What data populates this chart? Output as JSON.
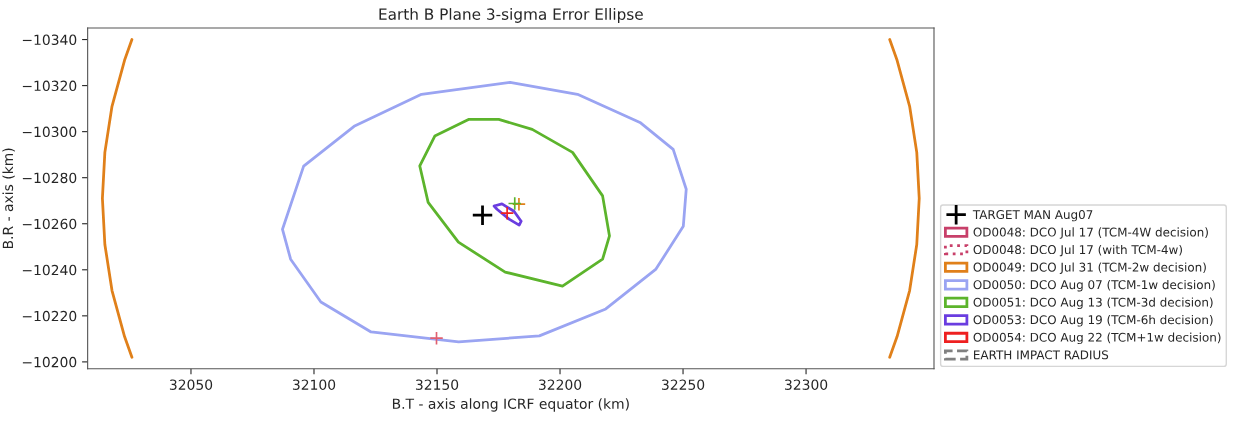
{
  "chart_data": {
    "type": "line",
    "title": "Earth B Plane 3-sigma Error Ellipse",
    "xlabel": "B.T - axis along ICRF equator (km)",
    "ylabel": "B.R - axis (km)",
    "xlim": [
      32008,
      32352
    ],
    "xticks": [
      32050,
      32100,
      32150,
      32200,
      32250,
      32300
    ],
    "ylim": [
      -10197,
      -10345
    ],
    "yticks": [
      -10340,
      -10320,
      -10300,
      -10280,
      -10260,
      -10240,
      -10220,
      -10200
    ],
    "grid": false,
    "legend": "right",
    "series": [
      {
        "type": "scatter",
        "name": "TARGET MAN Aug07",
        "color": "#000000",
        "marker": "cross",
        "x": [
          32168.5
        ],
        "values": [
          -10263.7
        ]
      },
      {
        "type": "line",
        "name": "OD0048: DCO Jul 17 (TCM-4W decision)",
        "color": "#c8406a",
        "line_style": "solid"
      },
      {
        "type": "line",
        "name": "OD0048: DCO Jul 17 (with TCM-4w)",
        "color": "#c8406a",
        "line_style": "dotted"
      },
      {
        "type": "line",
        "name": "OD0049: DCO Jul 31 (TCM-2w decision)",
        "color": "#e0801a",
        "line_style": "solid",
        "x": [
          32026.0,
          32023.0,
          32017.9,
          32015.0,
          32014,
          32015.0,
          32017.9,
          32023.0,
          32026.0,
          null,
          32334.0,
          32337.0,
          32342.1,
          32345.0,
          32346,
          32345.0,
          32342.1,
          32337.0,
          32334.0
        ],
        "values": [
          -10340,
          -10331,
          -10311,
          -10291,
          -10271,
          -10251,
          -10231,
          -10211,
          -10202,
          null,
          -10340,
          -10331,
          -10311,
          -10291,
          -10271,
          -10251,
          -10231,
          -10211,
          -10202
        ]
      },
      {
        "type": "line",
        "name": "OD0050: DCO Aug 07 (TCM-1w decision)",
        "color": "#9aa4f2",
        "line_style": "solid",
        "x": [
          32087.2,
          32095.8,
          32116.3,
          32143.7,
          32179.7,
          32207.1,
          32232.5,
          32246.0,
          32251.3,
          null,
          32087.2,
          32090.5,
          32102.8,
          32123.2,
          32158.8,
          32191.6,
          32218.6,
          32239.0,
          32250.1,
          32251.3
        ],
        "values": [
          -10257.6,
          -10285.0,
          -10302.3,
          -10316.2,
          -10321.4,
          -10316.2,
          -10304.0,
          -10292.3,
          -10275.0,
          null,
          -10257.6,
          -10244.6,
          -10226.0,
          -10213.0,
          -10208.7,
          -10211.3,
          -10223.0,
          -10240.3,
          -10258.9,
          -10275.0
        ]
      },
      {
        "type": "line",
        "name": "OD0051: DCO Aug 13 (TCM-3d decision)",
        "color": "#5cb42c",
        "line_style": "solid",
        "x": [
          32143.0,
          32149.1,
          32162.8,
          32175.1,
          32188.7,
          32205.1,
          32217.3,
          32220.1,
          null,
          32143.0,
          32146.4,
          32158.7,
          32177.7,
          32201.0,
          32217.3,
          32220.1
        ],
        "values": [
          -10285.1,
          -10298.1,
          -10305.3,
          -10305.3,
          -10301.0,
          -10291.0,
          -10272.1,
          -10254.7,
          null,
          -10285.1,
          -10269.3,
          -10252.0,
          -10239.0,
          -10232.9,
          -10244.6,
          -10254.7
        ]
      },
      {
        "type": "line",
        "name": "OD0053: DCO Aug 19 (TCM-6h decision)",
        "color": "#6a3de0",
        "line_style": "solid",
        "x": [
          32173.2,
          32176.4,
          32181.3,
          32184.2,
          null,
          32173.2,
          32174.4,
          32179.3,
          32183.4,
          32184.2
        ],
        "values": [
          -10267.7,
          -10268.6,
          -10265.4,
          -10261.1,
          null,
          -10267.7,
          -10266.3,
          -10262.0,
          -10259.4,
          -10261.1
        ]
      },
      {
        "type": "line",
        "name": "OD0054: DCO Aug 22 (TCM+1w decision)",
        "color": "#ee2020",
        "line_style": "solid"
      },
      {
        "type": "line",
        "name": "EARTH IMPACT RADIUS",
        "color": "#808080",
        "line_style": "dashed"
      },
      {
        "type": "scatter",
        "color": "#e06070",
        "marker": "cross",
        "x": [
          32149.8
        ],
        "values": [
          -10210.3
        ]
      },
      {
        "type": "scatter",
        "color": "#e0801a",
        "marker": "cross",
        "x": [
          32183.3
        ],
        "values": [
          -10268.5
        ]
      },
      {
        "type": "scatter",
        "color": "#5cb42c",
        "marker": "cross",
        "x": [
          32181.6
        ],
        "values": [
          -10268.8
        ]
      },
      {
        "type": "scatter",
        "color": "#ee2020",
        "marker": "cross",
        "x": [
          32178.5
        ],
        "values": [
          -10264.6
        ]
      }
    ]
  }
}
